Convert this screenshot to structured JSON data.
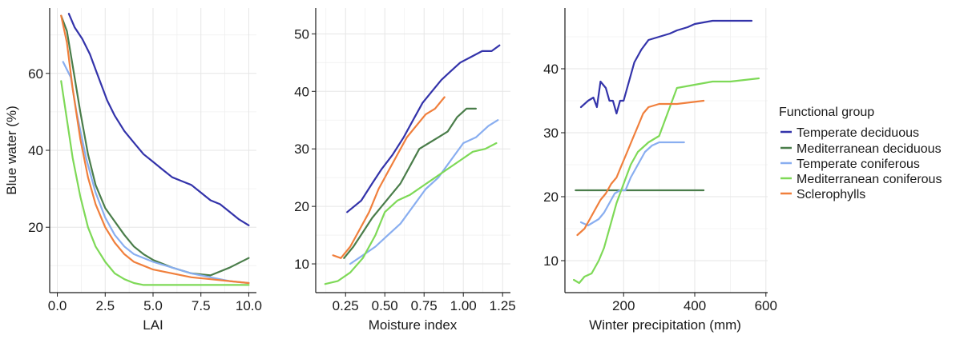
{
  "chart_data": [
    {
      "type": "line",
      "xlabel": "LAI",
      "ylabel": "Blue water (%)",
      "xlim": [
        -0.4,
        10.4
      ],
      "ylim": [
        3,
        77
      ],
      "xticks": [
        0.0,
        2.5,
        5.0,
        7.5,
        10.0
      ],
      "xtick_labels": [
        "0.0",
        "2.5",
        "5.0",
        "7.5",
        "10.0"
      ],
      "yticks": [
        20,
        40,
        60
      ],
      "ytick_labels": [
        "20",
        "40",
        "60"
      ],
      "grid": true,
      "series": [
        {
          "name": "Temperate deciduous",
          "color": "#3333aa",
          "x": [
            0.6,
            0.9,
            1.3,
            1.7,
            2.0,
            2.3,
            2.6,
            3.0,
            3.5,
            4.0,
            4.5,
            5.0,
            5.5,
            6.0,
            6.5,
            7.0,
            7.5,
            8.0,
            8.5,
            9.0,
            9.5,
            10.0
          ],
          "y": [
            75.5,
            72,
            69,
            65,
            61,
            57,
            53,
            49,
            45,
            42,
            39,
            37,
            35,
            33,
            32,
            31,
            29,
            27,
            26,
            24,
            22,
            20.5
          ]
        },
        {
          "name": "Mediterranean deciduous",
          "color": "#4a7d4a",
          "x": [
            0.2,
            0.5,
            0.8,
            1.2,
            1.6,
            2.0,
            2.5,
            3.0,
            3.5,
            4.0,
            4.5,
            5.0,
            6.0,
            7.0,
            8.0,
            9.0,
            10.0
          ],
          "y": [
            75,
            71,
            62,
            50,
            39,
            31,
            25,
            21.5,
            18,
            15,
            13,
            11.5,
            9.5,
            8,
            7.5,
            9.5,
            12
          ]
        },
        {
          "name": "Temperate coniferous",
          "color": "#89aef0",
          "x": [
            0.3,
            0.7,
            1.0,
            1.5,
            2.0,
            2.5,
            3.0,
            3.5,
            4.0,
            5.0,
            6.0,
            7.0,
            8.0,
            9.0,
            10.0
          ],
          "y": [
            63,
            59,
            50,
            38,
            29,
            22.5,
            18,
            15,
            13,
            11,
            9.5,
            8,
            7,
            6,
            5.5
          ]
        },
        {
          "name": "Mediterranean coniferous",
          "color": "#7ed957",
          "x": [
            0.2,
            0.5,
            0.8,
            1.2,
            1.6,
            2.0,
            2.5,
            3.0,
            3.5,
            4.0,
            4.5,
            5.0,
            6.0,
            8.0,
            10.0
          ],
          "y": [
            58,
            48,
            38,
            28,
            20,
            15,
            11,
            8,
            6.5,
            5.5,
            5,
            5,
            5,
            5,
            5
          ]
        },
        {
          "name": "Sclerophylls",
          "color": "#f07f3c",
          "x": [
            0.2,
            0.5,
            0.8,
            1.2,
            1.6,
            2.0,
            2.5,
            3.0,
            3.5,
            4.0,
            4.5,
            5.0,
            6.0,
            7.0,
            8.0,
            9.0,
            10.0
          ],
          "y": [
            75,
            68,
            56,
            43,
            33,
            26,
            20,
            16,
            13,
            11,
            10,
            9,
            8,
            7,
            6.5,
            6,
            5.5
          ]
        }
      ]
    },
    {
      "type": "line",
      "xlabel": "Moisture index",
      "ylabel": "",
      "xlim": [
        0.06,
        1.3
      ],
      "ylim": [
        5,
        54.5
      ],
      "xticks": [
        0.25,
        0.5,
        0.75,
        1.0,
        1.25
      ],
      "xtick_labels": [
        "0.25",
        "0.50",
        "0.75",
        "1.00",
        "1.25"
      ],
      "yticks": [
        10,
        20,
        30,
        40,
        50
      ],
      "ytick_labels": [
        "10",
        "20",
        "30",
        "40",
        "50"
      ],
      "grid": true,
      "series": [
        {
          "name": "Temperate deciduous",
          "color": "#3333aa",
          "x": [
            0.26,
            0.35,
            0.42,
            0.48,
            0.55,
            0.62,
            0.68,
            0.74,
            0.8,
            0.86,
            0.92,
            0.98,
            1.05,
            1.12,
            1.18,
            1.23
          ],
          "y": [
            19,
            21,
            24,
            26.5,
            29,
            32,
            35,
            38,
            40,
            42,
            43.5,
            45,
            46,
            47,
            47,
            48
          ]
        },
        {
          "name": "Mediterranean deciduous",
          "color": "#4a7d4a",
          "x": [
            0.24,
            0.3,
            0.36,
            0.42,
            0.48,
            0.54,
            0.6,
            0.66,
            0.72,
            0.78,
            0.84,
            0.9,
            0.96,
            1.02,
            1.08
          ],
          "y": [
            11,
            13,
            15.5,
            18,
            20,
            22,
            24,
            27,
            30,
            31,
            32,
            33,
            35.5,
            37,
            37
          ]
        },
        {
          "name": "Temperate coniferous",
          "color": "#89aef0",
          "x": [
            0.28,
            0.36,
            0.44,
            0.52,
            0.6,
            0.68,
            0.76,
            0.84,
            0.92,
            1.0,
            1.08,
            1.16,
            1.22
          ],
          "y": [
            10,
            11.5,
            13,
            15,
            17,
            20,
            23,
            25,
            28,
            31,
            32,
            34,
            35
          ]
        },
        {
          "name": "Mediterranean coniferous",
          "color": "#7ed957",
          "x": [
            0.12,
            0.2,
            0.28,
            0.36,
            0.44,
            0.5,
            0.58,
            0.66,
            0.74,
            0.82,
            0.9,
            0.98,
            1.06,
            1.14,
            1.21
          ],
          "y": [
            6.5,
            7,
            8.5,
            11,
            15,
            19,
            21,
            22,
            23.5,
            25,
            26.5,
            28,
            29.5,
            30,
            31
          ]
        },
        {
          "name": "Sclerophylls",
          "color": "#f07f3c",
          "x": [
            0.17,
            0.22,
            0.28,
            0.34,
            0.4,
            0.46,
            0.52,
            0.58,
            0.64,
            0.7,
            0.76,
            0.82,
            0.88
          ],
          "y": [
            11.5,
            11,
            13,
            16,
            19,
            23,
            26,
            29,
            32,
            34,
            36,
            37,
            39
          ]
        }
      ]
    },
    {
      "type": "line",
      "xlabel": "Winter precipitation (mm)",
      "ylabel": "",
      "xlim": [
        35,
        605
      ],
      "ylim": [
        5,
        49.5
      ],
      "xticks": [
        200,
        400,
        600
      ],
      "xtick_labels": [
        "200",
        "400",
        "600"
      ],
      "yticks": [
        10,
        20,
        30,
        40
      ],
      "ytick_labels": [
        "10",
        "20",
        "30",
        "40"
      ],
      "grid": true,
      "series": [
        {
          "name": "Temperate deciduous",
          "color": "#3333aa",
          "x": [
            80,
            100,
            115,
            125,
            135,
            150,
            160,
            170,
            180,
            190,
            200,
            215,
            230,
            250,
            270,
            300,
            330,
            350,
            380,
            400,
            450,
            500,
            560
          ],
          "y": [
            34,
            35,
            35.5,
            34,
            38,
            37,
            35,
            35,
            33,
            35,
            35,
            38,
            41,
            43,
            44.5,
            45,
            45.5,
            46,
            46.5,
            47,
            47.5,
            47.5,
            47.5
          ]
        },
        {
          "name": "Mediterranean deciduous",
          "color": "#4a7d4a",
          "x": [
            65,
            150,
            250,
            350,
            425
          ],
          "y": [
            21,
            21,
            21,
            21,
            21
          ]
        },
        {
          "name": "Temperate coniferous",
          "color": "#89aef0",
          "x": [
            80,
            100,
            115,
            130,
            145,
            160,
            175,
            190,
            205,
            220,
            240,
            260,
            280,
            300,
            330,
            370
          ],
          "y": [
            16,
            15.5,
            16,
            16.5,
            17.5,
            19,
            20.5,
            21,
            21,
            23,
            25,
            27,
            28,
            28.5,
            28.5,
            28.5
          ]
        },
        {
          "name": "Mediterranean coniferous",
          "color": "#7ed957",
          "x": [
            60,
            75,
            90,
            110,
            130,
            145,
            160,
            180,
            200,
            220,
            240,
            270,
            300,
            330,
            350,
            400,
            450,
            500,
            580
          ],
          "y": [
            7,
            6.5,
            7.5,
            8,
            10,
            12,
            15,
            19,
            22,
            25,
            27,
            28.5,
            29.5,
            34,
            37,
            37.5,
            38,
            38,
            38.5
          ]
        },
        {
          "name": "Sclerophylls",
          "color": "#f07f3c",
          "x": [
            70,
            90,
            105,
            120,
            135,
            150,
            165,
            180,
            195,
            210,
            225,
            240,
            255,
            270,
            300,
            350,
            425
          ],
          "y": [
            14,
            15,
            16.5,
            18,
            19.5,
            20.5,
            22,
            23,
            25,
            27,
            29,
            31,
            33,
            34,
            34.5,
            34.5,
            35
          ]
        }
      ]
    }
  ],
  "legend": {
    "title": "Functional group",
    "placement": "right",
    "items": [
      {
        "label": "Temperate deciduous",
        "color": "#3333aa"
      },
      {
        "label": "Mediterranean deciduous",
        "color": "#4a7d4a"
      },
      {
        "label": "Temperate coniferous",
        "color": "#89aef0"
      },
      {
        "label": "Mediterranean coniferous",
        "color": "#7ed957"
      },
      {
        "label": "Sclerophylls",
        "color": "#f07f3c"
      }
    ]
  }
}
